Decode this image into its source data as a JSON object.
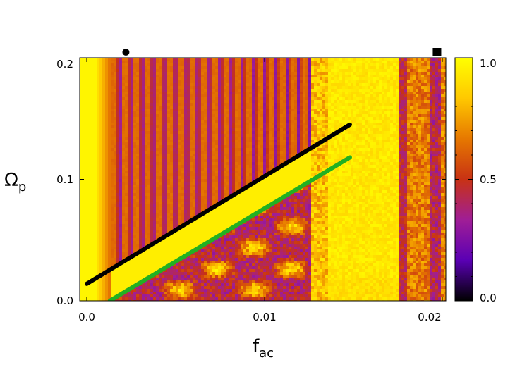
{
  "chart_data": {
    "type": "heatmap",
    "xlabel": {
      "base": "f",
      "sub": "ac"
    },
    "ylabel": {
      "base": "Ω",
      "sub": "p"
    },
    "xlim": [
      0.0,
      0.0205
    ],
    "ylim": [
      0.0,
      0.2
    ],
    "x_ticks": [
      {
        "value": 0.0,
        "label": "0.0"
      },
      {
        "value": 0.01,
        "label": "0.01"
      },
      {
        "value": 0.02,
        "label": "0.02"
      }
    ],
    "y_ticks": [
      {
        "value": 0.0,
        "label": "0.0"
      },
      {
        "value": 0.1,
        "label": "0.1"
      },
      {
        "value": 0.2,
        "label": "0.2"
      }
    ],
    "colorbar": {
      "range": [
        0.0,
        1.0
      ],
      "ticks": [
        {
          "value": 0.0,
          "label": "0.0"
        },
        {
          "value": 0.5,
          "label": "0.5"
        },
        {
          "value": 1.0,
          "label": "1.0"
        }
      ],
      "palette": [
        "#000000",
        "#5a00b4",
        "#a01e96",
        "#c83214",
        "#e67800",
        "#ffc800",
        "#ffff00"
      ]
    },
    "overlay_lines": [
      {
        "color": "#000000",
        "x": [
          0.0,
          0.0148
        ],
        "y": [
          0.014,
          0.145
        ]
      },
      {
        "color": "#22b022",
        "x": [
          0.0013,
          0.0148
        ],
        "y": [
          0.0,
          0.118
        ]
      }
    ],
    "markers": [
      {
        "shape": "circle",
        "x": 0.0022,
        "y": 0.2
      },
      {
        "shape": "square",
        "x": 0.0197,
        "y": 0.2
      }
    ]
  }
}
